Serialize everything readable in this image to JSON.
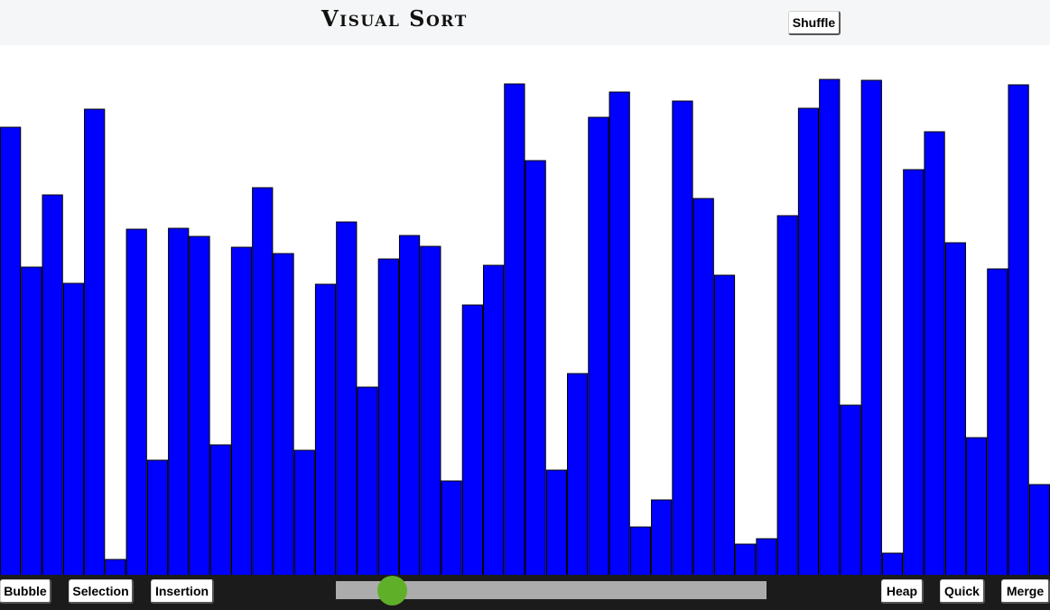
{
  "header": {
    "title": "Visual Sort",
    "shuffle_label": "Shuffle"
  },
  "array": {
    "bar_color": "#0000fe",
    "max_value": 587,
    "values": [
      496,
      341,
      421,
      323,
      516,
      17,
      383,
      127,
      384,
      375,
      144,
      363,
      429,
      356,
      138,
      322,
      391,
      208,
      350,
      376,
      364,
      104,
      299,
      343,
      544,
      459,
      116,
      223,
      507,
      535,
      53,
      83,
      525,
      417,
      332,
      34,
      40,
      398,
      517,
      549,
      188,
      548,
      24,
      449,
      491,
      368,
      152,
      339,
      543,
      100
    ]
  },
  "footer": {
    "buttons": {
      "bubble": "Bubble",
      "selection": "Selection",
      "insertion": "Insertion",
      "heap": "Heap",
      "quick": "Quick",
      "merge": "Merge"
    },
    "speed_slider": {
      "value_fraction": 0.13,
      "thumb_color": "#5faf28",
      "track_color": "#acacac"
    }
  }
}
